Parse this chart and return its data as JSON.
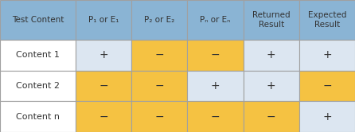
{
  "col_labels": [
    "Test Content",
    "P₁ or E₁",
    "P₂ or E₂",
    "Pₙ or Eₙ",
    "Returned\nResult",
    "Expected\nResult"
  ],
  "row_labels": [
    "Content 1",
    "Content 2",
    "Content n"
  ],
  "cell_values": [
    [
      "+",
      "−",
      "−",
      "+",
      "+"
    ],
    [
      "−",
      "−",
      "+",
      "+",
      "−"
    ],
    [
      "−",
      "−",
      "−",
      "−",
      "+"
    ]
  ],
  "cell_colors": [
    [
      "#dce6f1",
      "#f5c242",
      "#f5c242",
      "#dce6f1",
      "#dce6f1"
    ],
    [
      "#f5c242",
      "#f5c242",
      "#dce6f1",
      "#dce6f1",
      "#f5c242"
    ],
    [
      "#f5c242",
      "#f5c242",
      "#f5c242",
      "#f5c242",
      "#dce6f1"
    ]
  ],
  "header_color": "#8ab4d4",
  "row_label_color": "#ffffff",
  "border_color": "#a0a0a0",
  "text_color": "#333333",
  "col_widths": [
    1.35,
    1.0,
    1.0,
    1.0,
    1.0,
    1.0
  ],
  "fig_width": 4.46,
  "fig_height": 1.66,
  "dpi": 100,
  "header_fontsize": 7.5,
  "cell_fontsize": 10,
  "row_label_fontsize": 8
}
